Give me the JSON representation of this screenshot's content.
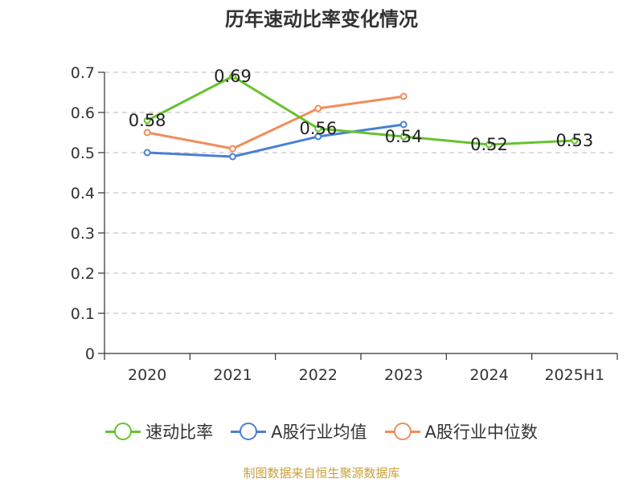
{
  "chart_data": {
    "type": "line",
    "title": "历年速动比率变化情况",
    "categories": [
      "2020",
      "2021",
      "2022",
      "2023",
      "2024",
      "2025H1"
    ],
    "ylim": [
      0,
      0.7
    ],
    "yticks": [
      0,
      0.1,
      0.2,
      0.3,
      0.4,
      0.5,
      0.6,
      0.7
    ],
    "ytick_labels": [
      "0",
      "0.1",
      "0.2",
      "0.3",
      "0.4",
      "0.5",
      "0.6",
      "0.7"
    ],
    "grid": true,
    "legend_position": "bottom",
    "series": [
      {
        "name": "速动比率",
        "color": "#66c22e",
        "values": [
          0.58,
          0.69,
          0.56,
          0.54,
          0.52,
          0.53
        ],
        "labels": [
          "0.58",
          "0.69",
          "0.56",
          "0.54",
          "0.52",
          "0.53"
        ]
      },
      {
        "name": "A股行业均值",
        "color": "#4a7fd6",
        "values": [
          0.5,
          0.49,
          0.54,
          0.57,
          null,
          null
        ]
      },
      {
        "name": "A股行业中位数",
        "color": "#f28c5a",
        "values": [
          0.55,
          0.51,
          0.61,
          0.64,
          null,
          null
        ]
      }
    ]
  },
  "source_text": "制图数据来自恒生聚源数据库"
}
